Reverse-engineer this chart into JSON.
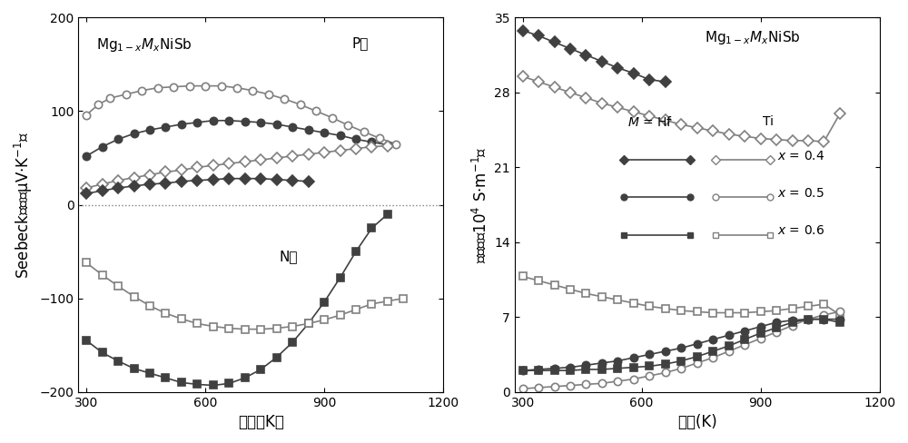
{
  "left_title_text": "Mg$_{1-x}$$M_x$NiSb",
  "left_ptype_label": "P型",
  "left_ntype_label": "N型",
  "right_title_text": "Mg$_{1-x}$$M_x$NiSb",
  "left_xlabel": "温度（K）",
  "left_ylabel": "Seebeck系数（μV·K$^{-1}$）",
  "right_xlabel": "温度(K)",
  "right_ylabel": "电导率（10$^4$ S·m$^{-1}$）",
  "left_xlim": [
    280,
    1200
  ],
  "left_ylim": [
    -200,
    200
  ],
  "left_yticks": [
    -200,
    -100,
    0,
    100,
    200
  ],
  "left_xticks": [
    300,
    600,
    900,
    1200
  ],
  "right_xlim": [
    280,
    1200
  ],
  "right_ylim": [
    0,
    35
  ],
  "right_yticks": [
    0,
    7,
    14,
    21,
    28,
    35
  ],
  "right_xticks": [
    300,
    600,
    900,
    1200
  ],
  "seebeck_Ti_circle_open_x": [
    300,
    330,
    360,
    400,
    440,
    480,
    520,
    560,
    600,
    640,
    680,
    720,
    760,
    800,
    840,
    880,
    920,
    960,
    1000,
    1040,
    1080
  ],
  "seebeck_Ti_circle_open_y": [
    96,
    107,
    114,
    118,
    122,
    125,
    126,
    127,
    127,
    127,
    125,
    122,
    118,
    113,
    107,
    100,
    93,
    85,
    78,
    71,
    65
  ],
  "seebeck_Hf_circle_filled_x": [
    300,
    340,
    380,
    420,
    460,
    500,
    540,
    580,
    620,
    660,
    700,
    740,
    780,
    820,
    860,
    900,
    940,
    980,
    1020,
    1060
  ],
  "seebeck_Hf_circle_filled_y": [
    52,
    62,
    70,
    76,
    80,
    83,
    86,
    88,
    90,
    90,
    89,
    88,
    86,
    83,
    80,
    77,
    74,
    70,
    67,
    64
  ],
  "seebeck_Ti_diamond_open_x": [
    300,
    340,
    380,
    420,
    460,
    500,
    540,
    580,
    620,
    660,
    700,
    740,
    780,
    820,
    860,
    900,
    940,
    980,
    1020,
    1060
  ],
  "seebeck_Ti_diamond_open_y": [
    18,
    22,
    26,
    29,
    32,
    35,
    37,
    40,
    42,
    44,
    46,
    48,
    50,
    52,
    54,
    56,
    58,
    60,
    62,
    63
  ],
  "seebeck_Hf_diamond_filled_x": [
    300,
    340,
    380,
    420,
    460,
    500,
    540,
    580,
    620,
    660,
    700,
    740,
    780,
    820,
    860
  ],
  "seebeck_Hf_diamond_filled_y": [
    12,
    15,
    18,
    20,
    22,
    23,
    25,
    26,
    27,
    28,
    28,
    28,
    27,
    26,
    25
  ],
  "seebeck_Hf_square_filled_x": [
    300,
    340,
    380,
    420,
    460,
    500,
    540,
    580,
    620,
    660,
    700,
    740,
    780,
    820,
    860,
    900,
    940,
    980,
    1020,
    1060
  ],
  "seebeck_Hf_square_filled_y": [
    -145,
    -158,
    -167,
    -175,
    -180,
    -185,
    -190,
    -192,
    -193,
    -191,
    -185,
    -176,
    -163,
    -147,
    -127,
    -104,
    -78,
    -50,
    -25,
    -10
  ],
  "seebeck_Ti_square_open_x": [
    300,
    340,
    380,
    420,
    460,
    500,
    540,
    580,
    620,
    660,
    700,
    740,
    780,
    820,
    860,
    900,
    940,
    980,
    1020,
    1060,
    1100
  ],
  "seebeck_Ti_square_open_y": [
    -62,
    -75,
    -87,
    -98,
    -108,
    -116,
    -122,
    -127,
    -130,
    -132,
    -133,
    -133,
    -132,
    -130,
    -127,
    -123,
    -118,
    -112,
    -106,
    -103,
    -100
  ],
  "cond_Hf_diamond_filled_x": [
    300,
    340,
    380,
    420,
    460,
    500,
    540,
    580,
    620,
    660
  ],
  "cond_Hf_diamond_filled_y": [
    33.8,
    33.3,
    32.7,
    32.1,
    31.5,
    30.9,
    30.3,
    29.8,
    29.2,
    29.0
  ],
  "cond_Ti_diamond_open_x": [
    300,
    340,
    380,
    420,
    460,
    500,
    540,
    580,
    620,
    660,
    700,
    740,
    780,
    820,
    860,
    900,
    940,
    980,
    1020,
    1060,
    1100
  ],
  "cond_Ti_diamond_open_y": [
    29.5,
    29.0,
    28.5,
    28.0,
    27.5,
    27.0,
    26.6,
    26.2,
    25.8,
    25.4,
    25.0,
    24.7,
    24.4,
    24.1,
    23.9,
    23.7,
    23.6,
    23.5,
    23.5,
    23.4,
    26.0
  ],
  "cond_Ti_square_open_x": [
    300,
    340,
    380,
    420,
    460,
    500,
    540,
    580,
    620,
    660,
    700,
    740,
    780,
    820,
    860,
    900,
    940,
    980,
    1020,
    1060,
    1100
  ],
  "cond_Ti_square_open_y": [
    10.8,
    10.4,
    10.0,
    9.6,
    9.2,
    8.9,
    8.6,
    8.3,
    8.0,
    7.8,
    7.6,
    7.5,
    7.4,
    7.4,
    7.4,
    7.5,
    7.6,
    7.8,
    8.0,
    8.2,
    7.2
  ],
  "cond_Hf_circle_filled_x": [
    300,
    340,
    380,
    420,
    460,
    500,
    540,
    580,
    620,
    660,
    700,
    740,
    780,
    820,
    860,
    900,
    940,
    980,
    1020,
    1060,
    1100
  ],
  "cond_Hf_circle_filled_y": [
    2.0,
    2.1,
    2.2,
    2.3,
    2.5,
    2.7,
    2.9,
    3.2,
    3.5,
    3.8,
    4.1,
    4.5,
    4.9,
    5.3,
    5.7,
    6.1,
    6.5,
    6.7,
    6.8,
    6.8,
    6.8
  ],
  "cond_Ti_circle_open_x": [
    300,
    340,
    380,
    420,
    460,
    500,
    540,
    580,
    620,
    660,
    700,
    740,
    780,
    820,
    860,
    900,
    940,
    980,
    1020,
    1060,
    1100
  ],
  "cond_Ti_circle_open_y": [
    0.3,
    0.4,
    0.5,
    0.6,
    0.7,
    0.8,
    1.0,
    1.2,
    1.5,
    1.8,
    2.2,
    2.7,
    3.2,
    3.8,
    4.4,
    5.0,
    5.6,
    6.2,
    6.8,
    7.2,
    7.5
  ],
  "cond_Hf_square_filled_x": [
    300,
    340,
    380,
    420,
    460,
    500,
    540,
    580,
    620,
    660,
    700,
    740,
    780,
    820,
    860,
    900,
    940,
    980,
    1020,
    1060,
    1100
  ],
  "cond_Hf_square_filled_y": [
    2.0,
    2.0,
    2.0,
    2.0,
    2.1,
    2.1,
    2.2,
    2.3,
    2.4,
    2.6,
    2.9,
    3.3,
    3.8,
    4.3,
    4.9,
    5.5,
    6.0,
    6.5,
    6.8,
    6.8,
    6.5
  ],
  "color_filled": "#404040",
  "color_open": "#808080",
  "linewidth": 1.2,
  "markersize": 6
}
